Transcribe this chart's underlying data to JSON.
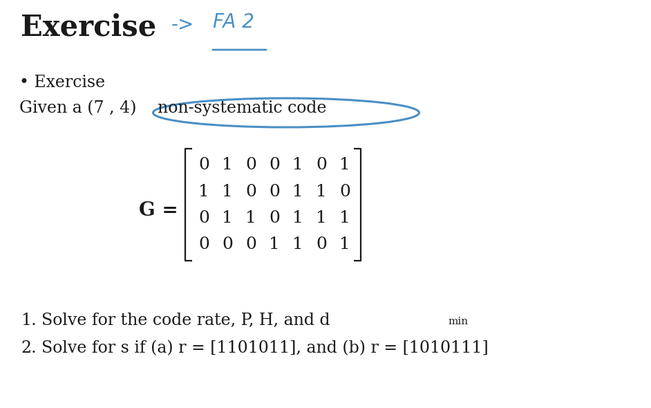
{
  "bg_color": "#ffffff",
  "title_text": "Exercise",
  "arrow_text": "->",
  "fa2_text": "FA 2",
  "bullet_text": "• Exercise",
  "given_prefix": "Given a (7 , 4) ",
  "given_circled": "non-systematic code",
  "matrix_label": "G =",
  "matrix": [
    [
      0,
      1,
      0,
      0,
      1,
      0,
      1
    ],
    [
      1,
      1,
      0,
      0,
      1,
      1,
      0
    ],
    [
      0,
      1,
      1,
      0,
      1,
      1,
      1
    ],
    [
      0,
      0,
      0,
      1,
      1,
      0,
      1
    ]
  ],
  "item1_main": "Solve for the code rate, P, H, and d",
  "item1_sub": "min",
  "item2": "Solve for s if (a) r = [1101011], and (b) r = [1010111]",
  "blue_color": "#4a8fc4",
  "black_color": "#1a1a1a",
  "title_fontsize": 30,
  "body_fontsize": 17,
  "matrix_fontsize": 18,
  "fa2_fontsize": 20,
  "arrow_fontsize": 20
}
